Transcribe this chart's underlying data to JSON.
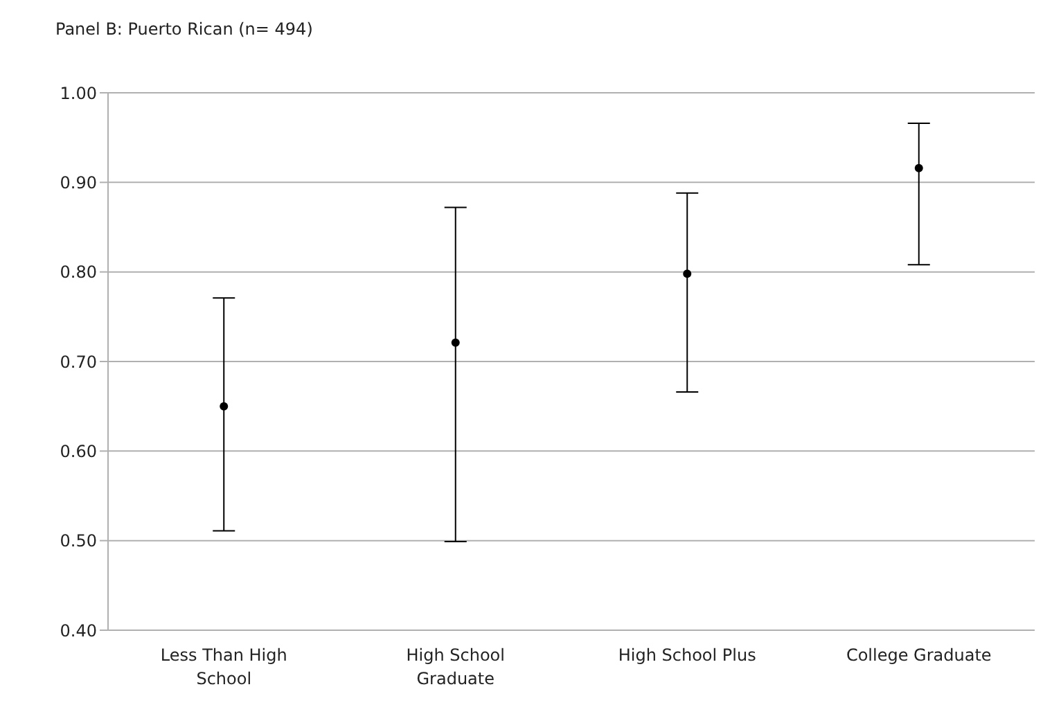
{
  "chart_data": {
    "type": "scatter",
    "title": "Panel B: Puerto Rican (n= 494)",
    "categories": [
      "Less Than High School",
      "High School Graduate",
      "High School Plus",
      "College Graduate"
    ],
    "series": [
      {
        "color": "#000000",
        "values": [
          0.65,
          0.721,
          0.798,
          0.916
        ],
        "errors": [
          [
            0.511,
            0.771
          ],
          [
            0.499,
            0.872
          ],
          [
            0.666,
            0.888
          ],
          [
            0.808,
            0.966
          ]
        ]
      }
    ],
    "ylim": [
      0.4,
      1.0
    ],
    "yticks": [
      {
        "value": 0.4,
        "label": "0.40"
      },
      {
        "value": 0.5,
        "label": "0.50"
      },
      {
        "value": 0.6,
        "label": "0.60"
      },
      {
        "value": 0.7,
        "label": "0.70"
      },
      {
        "value": 0.8,
        "label": "0.80"
      },
      {
        "value": 0.9,
        "label": "0.90"
      },
      {
        "value": 1.0,
        "label": "1.00"
      }
    ],
    "grid": "y",
    "marker": "circle",
    "legend": false
  }
}
